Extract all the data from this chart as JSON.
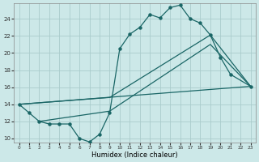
{
  "bg_color": "#cce8e8",
  "grid_color": "#aacccc",
  "line_color": "#1a6666",
  "xlabel": "Humidex (Indice chaleur)",
  "xlim": [
    -0.5,
    23.5
  ],
  "ylim": [
    9.5,
    25.8
  ],
  "yticks": [
    10,
    12,
    14,
    16,
    18,
    20,
    22,
    24
  ],
  "xticks": [
    0,
    1,
    2,
    3,
    4,
    5,
    6,
    7,
    8,
    9,
    10,
    11,
    12,
    13,
    14,
    15,
    16,
    17,
    18,
    19,
    20,
    21,
    22,
    23
  ],
  "curve1_x": [
    0,
    1,
    2,
    3,
    4,
    5,
    6,
    7,
    8,
    9,
    10,
    11,
    12,
    13,
    14,
    15,
    16,
    17,
    18,
    19,
    20,
    21,
    23
  ],
  "curve1_y": [
    14.0,
    13.0,
    12.0,
    11.7,
    11.7,
    11.7,
    10.0,
    9.6,
    10.5,
    13.0,
    20.5,
    22.2,
    23.0,
    24.5,
    24.1,
    25.3,
    25.6,
    24.0,
    23.5,
    22.1,
    19.5,
    17.5,
    16.1
  ],
  "curve2_x": [
    0,
    23
  ],
  "curve2_y": [
    14.0,
    16.1
  ],
  "curve3_x": [
    2,
    9,
    19,
    23
  ],
  "curve3_y": [
    12.0,
    13.2,
    21.0,
    16.1
  ],
  "curve4_x": [
    0,
    9,
    19,
    23
  ],
  "curve4_y": [
    14.0,
    14.8,
    22.1,
    16.1
  ]
}
